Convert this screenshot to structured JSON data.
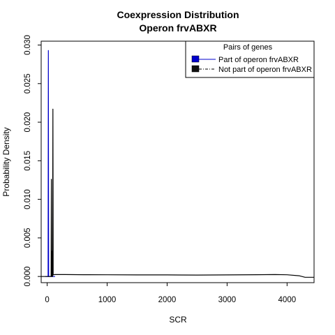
{
  "chart_data": {
    "type": "line",
    "title": [
      "Coexpression Distribution",
      "Operon frvABXR"
    ],
    "xlabel": "SCR",
    "ylabel": "Probability Density",
    "xlim": [
      -100,
      4450
    ],
    "ylim": [
      -0.0008,
      0.0305
    ],
    "x_ticks": [
      0,
      1000,
      2000,
      3000,
      4000
    ],
    "x_tick_labels": [
      "0",
      "1000",
      "2000",
      "3000",
      "4000"
    ],
    "y_ticks": [
      0.0,
      0.005,
      0.01,
      0.015,
      0.02,
      0.025,
      0.03
    ],
    "y_tick_labels": [
      "0.000",
      "0.005",
      "0.010",
      "0.015",
      "0.020",
      "0.025",
      "0.030"
    ],
    "grid": false,
    "legend": {
      "title": "Pairs of genes",
      "position": "top-right",
      "entries": [
        "Part of operon frvABXR",
        "Not part of operon frvABXR"
      ]
    },
    "series": [
      {
        "name": "Part of operon frvABXR",
        "color": "#0000cc",
        "line_style": "solid",
        "x": [
          -30,
          0,
          5,
          10,
          15,
          20,
          25,
          30,
          35,
          40,
          45,
          50,
          55,
          60,
          65,
          70,
          75,
          80,
          85,
          90,
          95,
          100,
          130
        ],
        "y": [
          0.0,
          0.0,
          0.0,
          0.0,
          0.0,
          0.0293,
          0.0,
          0.0,
          0.0,
          0.0,
          0.0,
          0.0,
          0.0,
          0.0,
          0.0,
          0.0,
          0.0,
          0.0,
          0.0,
          0.0,
          0.0,
          0.0,
          0.0
        ]
      },
      {
        "name": "Not part of operon frvABXR",
        "color": "#000000",
        "line_style": "dashdot",
        "x": [
          -100,
          0,
          50,
          60,
          65,
          70,
          75,
          80,
          85,
          90,
          95,
          100,
          120,
          300,
          600,
          1000,
          1500,
          2000,
          2500,
          3000,
          3500,
          3800,
          4000,
          4200,
          4300,
          4450
        ],
        "y": [
          0.0,
          0.0,
          0.0,
          0.0,
          0.0,
          0.0126,
          0.0,
          0.0033,
          0.0,
          0.0,
          0.0217,
          0.0002,
          0.00025,
          0.00025,
          0.00023,
          0.00022,
          0.0002,
          0.0002,
          0.00019,
          0.0002,
          0.00023,
          0.00025,
          0.00022,
          0.0001,
          -0.0001,
          -0.0001
        ]
      }
    ]
  }
}
